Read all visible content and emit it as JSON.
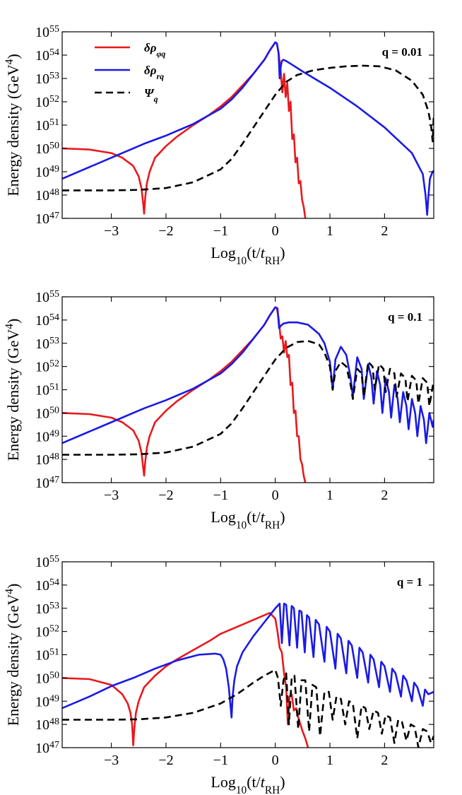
{
  "chart_data": [
    {
      "type": "line",
      "annotation": "q = 0.01",
      "xlabel": "Log10(t/tRH)",
      "ylabel": "Energy density (GeV4)",
      "xlim": [
        -3.9,
        2.9
      ],
      "ylim": [
        47,
        55
      ],
      "y_scale": "log",
      "x_ticks": [
        -3,
        -2,
        -1,
        0,
        1,
        2
      ],
      "y_ticks": [
        47,
        48,
        49,
        50,
        51,
        52,
        53,
        54,
        55
      ],
      "legend": {
        "placement": "top-left"
      },
      "series": [
        {
          "name": "δρφq",
          "color": "#e8191c",
          "style": "solid",
          "x": [
            -3.9,
            -3.4,
            -3.0,
            -2.8,
            -2.6,
            -2.5,
            -2.45,
            -2.42,
            -2.4,
            -2.38,
            -2.35,
            -2.3,
            -2.2,
            -2.0,
            -1.8,
            -1.5,
            -1.2,
            -1.0,
            -0.8,
            -0.6,
            -0.4,
            -0.2,
            -0.1,
            0.0,
            0.03,
            0.06,
            0.1,
            0.13,
            0.16,
            0.19,
            0.22,
            0.25,
            0.28,
            0.31,
            0.34,
            0.37,
            0.4,
            0.43,
            0.46,
            0.49,
            0.52,
            0.55
          ],
          "y": [
            50.0,
            49.95,
            49.8,
            49.6,
            49.25,
            48.8,
            48.3,
            47.7,
            47.2,
            47.9,
            48.5,
            49.0,
            49.6,
            50.1,
            50.5,
            51.0,
            51.45,
            51.8,
            52.2,
            52.7,
            53.2,
            53.8,
            54.2,
            54.55,
            54.5,
            54.1,
            53.3,
            52.4,
            53.2,
            52.2,
            52.8,
            51.6,
            52.0,
            50.4,
            50.6,
            49.4,
            49.6,
            48.5,
            48.6,
            47.8,
            47.5,
            47.0
          ]
        },
        {
          "name": "δρrq",
          "color": "#1a1ae6",
          "style": "solid",
          "x": [
            -3.9,
            -3.0,
            -2.4,
            -2.0,
            -1.5,
            -1.0,
            -0.8,
            -0.6,
            -0.4,
            -0.2,
            -0.1,
            0.0,
            0.03,
            0.06,
            0.08,
            0.1,
            0.12,
            0.15,
            0.2,
            0.3,
            0.5,
            1.0,
            1.5,
            2.0,
            2.5,
            2.7,
            2.75,
            2.78,
            2.8,
            2.83,
            2.87,
            2.9
          ],
          "y": [
            48.7,
            49.6,
            50.2,
            50.55,
            51.05,
            51.7,
            52.1,
            52.6,
            53.2,
            53.8,
            54.2,
            54.55,
            54.5,
            54.1,
            53.0,
            53.5,
            53.75,
            53.8,
            53.75,
            53.6,
            53.3,
            52.6,
            51.8,
            50.9,
            49.8,
            48.9,
            48.0,
            47.15,
            47.9,
            48.7,
            48.95,
            49.05
          ]
        },
        {
          "name": "Ψq",
          "color": "#000000",
          "style": "dashed",
          "x": [
            -3.9,
            -3.0,
            -2.5,
            -2.0,
            -1.5,
            -1.0,
            -0.8,
            -0.6,
            -0.4,
            -0.2,
            0.0,
            0.2,
            0.4,
            0.7,
            1.0,
            1.3,
            1.6,
            1.9,
            2.2,
            2.5,
            2.7,
            2.8,
            2.85,
            2.88,
            2.9
          ],
          "y": [
            48.2,
            48.2,
            48.22,
            48.3,
            48.55,
            49.1,
            49.55,
            50.2,
            50.9,
            51.6,
            52.3,
            52.85,
            53.15,
            53.35,
            53.45,
            53.52,
            53.55,
            53.52,
            53.35,
            52.9,
            52.3,
            51.6,
            51.0,
            50.3,
            51.4
          ]
        }
      ]
    },
    {
      "type": "line",
      "annotation": "q = 0.1",
      "xlabel": "Log10(t/tRH)",
      "ylabel": "Energy density (GeV4)",
      "xlim": [
        -3.9,
        2.9
      ],
      "ylim": [
        47,
        55
      ],
      "y_scale": "log",
      "x_ticks": [
        -3,
        -2,
        -1,
        0,
        1,
        2
      ],
      "y_ticks": [
        47,
        48,
        49,
        50,
        51,
        52,
        53,
        54,
        55
      ],
      "series": [
        {
          "name": "δρφq",
          "color": "#e8191c",
          "style": "solid",
          "x": [
            -3.9,
            -3.4,
            -3.0,
            -2.8,
            -2.6,
            -2.5,
            -2.45,
            -2.42,
            -2.4,
            -2.38,
            -2.35,
            -2.3,
            -2.2,
            -2.0,
            -1.8,
            -1.5,
            -1.2,
            -1.0,
            -0.8,
            -0.6,
            -0.4,
            -0.2,
            -0.1,
            0.0,
            0.03,
            0.06,
            0.1,
            0.13,
            0.16,
            0.19,
            0.22,
            0.25,
            0.28,
            0.31,
            0.34,
            0.37,
            0.4,
            0.43,
            0.46,
            0.49,
            0.52,
            0.55
          ],
          "y": [
            50.0,
            49.95,
            49.8,
            49.6,
            49.25,
            48.8,
            48.3,
            47.7,
            47.3,
            47.9,
            48.5,
            49.0,
            49.6,
            50.1,
            50.5,
            51.0,
            51.45,
            51.8,
            52.2,
            52.7,
            53.2,
            53.8,
            54.2,
            54.55,
            54.5,
            54.1,
            53.2,
            53.3,
            52.6,
            53.1,
            52.4,
            52.5,
            51.2,
            51.3,
            50.0,
            50.1,
            49.0,
            49.0,
            48.0,
            47.8,
            47.3,
            47.0
          ]
        },
        {
          "name": "δρrq",
          "color": "#1a1ae6",
          "style": "solid",
          "x": [
            -3.9,
            -3.0,
            -2.4,
            -2.0,
            -1.5,
            -1.0,
            -0.8,
            -0.6,
            -0.4,
            -0.2,
            -0.1,
            0.0,
            0.04,
            0.07,
            0.1,
            0.15,
            0.25,
            0.4,
            0.6,
            0.8,
            0.9,
            1.0,
            1.05,
            1.1,
            1.2,
            1.3,
            1.38,
            1.42,
            1.5,
            1.58,
            1.62,
            1.7,
            1.76,
            1.8,
            1.86,
            1.92,
            1.96,
            2.02,
            2.08,
            2.12,
            2.18,
            2.24,
            2.28,
            2.34,
            2.4,
            2.44,
            2.5,
            2.56,
            2.6,
            2.66,
            2.72,
            2.76,
            2.82,
            2.88,
            2.9
          ],
          "y": [
            48.7,
            49.6,
            50.2,
            50.55,
            51.05,
            51.7,
            52.1,
            52.6,
            53.2,
            53.8,
            54.2,
            54.55,
            54.5,
            53.65,
            53.75,
            53.85,
            53.9,
            53.9,
            53.8,
            53.4,
            53.0,
            52.2,
            51.0,
            52.3,
            52.85,
            52.5,
            51.5,
            50.7,
            52.4,
            51.9,
            50.6,
            52.1,
            51.5,
            50.4,
            51.8,
            51.2,
            50.0,
            51.5,
            50.9,
            49.8,
            51.2,
            50.6,
            49.6,
            50.9,
            50.3,
            49.3,
            50.6,
            50.0,
            49.0,
            50.3,
            49.7,
            48.7,
            50.0,
            49.4,
            49.7
          ]
        },
        {
          "name": "Ψq",
          "color": "#000000",
          "style": "dashed",
          "x": [
            -3.9,
            -3.0,
            -2.5,
            -2.0,
            -1.5,
            -1.0,
            -0.8,
            -0.6,
            -0.4,
            -0.2,
            0.0,
            0.2,
            0.4,
            0.6,
            0.8,
            0.9,
            1.0,
            1.05,
            1.1,
            1.2,
            1.3,
            1.38,
            1.42,
            1.5,
            1.58,
            1.62,
            1.7,
            1.78,
            1.82,
            1.9,
            1.98,
            2.02,
            2.1,
            2.18,
            2.22,
            2.3,
            2.38,
            2.42,
            2.5,
            2.58,
            2.62,
            2.7,
            2.78,
            2.82,
            2.9
          ],
          "y": [
            48.2,
            48.2,
            48.22,
            48.3,
            48.55,
            49.1,
            49.55,
            50.2,
            50.9,
            51.6,
            52.3,
            52.8,
            53.05,
            53.1,
            52.95,
            52.6,
            52.0,
            51.0,
            51.8,
            52.2,
            52.0,
            51.2,
            50.6,
            51.9,
            51.7,
            50.7,
            52.2,
            52.0,
            51.0,
            52.1,
            51.9,
            50.9,
            51.9,
            51.7,
            50.7,
            51.7,
            51.5,
            50.5,
            51.6,
            51.4,
            50.4,
            51.5,
            51.3,
            50.3,
            51.4
          ]
        }
      ]
    },
    {
      "type": "line",
      "annotation": "q = 1",
      "xlabel": "Log10(t/tRH)",
      "ylabel": "Energy density (GeV4)",
      "xlim": [
        -3.9,
        2.9
      ],
      "ylim": [
        47,
        55
      ],
      "y_scale": "log",
      "x_ticks": [
        -3,
        -2,
        -1,
        0,
        1,
        2
      ],
      "y_ticks": [
        47,
        48,
        49,
        50,
        51,
        52,
        53,
        54,
        55
      ],
      "series": [
        {
          "name": "δρφq",
          "color": "#e8191c",
          "style": "solid",
          "x": [
            -3.9,
            -3.4,
            -3.0,
            -2.9,
            -2.8,
            -2.7,
            -2.65,
            -2.62,
            -2.6,
            -2.58,
            -2.55,
            -2.5,
            -2.4,
            -2.2,
            -2.0,
            -1.8,
            -1.5,
            -1.2,
            -1.0,
            -0.8,
            -0.6,
            -0.4,
            -0.2,
            -0.1,
            0.0,
            0.04,
            0.08,
            0.12,
            0.16,
            0.2,
            0.23,
            0.26,
            0.3,
            0.34,
            0.38,
            0.42,
            0.46,
            0.5,
            0.55,
            0.6
          ],
          "y": [
            50.0,
            49.95,
            49.7,
            49.5,
            49.3,
            48.9,
            48.5,
            48.0,
            47.1,
            47.8,
            48.5,
            49.0,
            49.6,
            50.1,
            50.5,
            50.8,
            51.2,
            51.6,
            51.9,
            52.1,
            52.3,
            52.5,
            52.7,
            52.8,
            52.55,
            52.0,
            51.3,
            51.1,
            50.2,
            49.6,
            48.0,
            49.2,
            49.3,
            48.6,
            48.7,
            48.3,
            48.0,
            47.7,
            47.4,
            47.0
          ]
        },
        {
          "name": "δρrq",
          "color": "#1a1ae6",
          "style": "solid",
          "x": [
            -3.9,
            -3.4,
            -3.0,
            -2.6,
            -2.2,
            -1.8,
            -1.4,
            -1.1,
            -1.0,
            -0.95,
            -0.9,
            -0.85,
            -0.8,
            -0.78,
            -0.75,
            -0.7,
            -0.6,
            -0.4,
            -0.2,
            0.0,
            0.08,
            0.12,
            0.16,
            0.2,
            0.26,
            0.3,
            0.34,
            0.4,
            0.44,
            0.48,
            0.54,
            0.58,
            0.62,
            0.7,
            0.74,
            0.8,
            0.9,
            0.94,
            1.0,
            1.1,
            1.14,
            1.2,
            1.3,
            1.34,
            1.4,
            1.5,
            1.54,
            1.6,
            1.7,
            1.74,
            1.8,
            1.9,
            1.94,
            2.0,
            2.1,
            2.14,
            2.2,
            2.3,
            2.34,
            2.4,
            2.5,
            2.54,
            2.6,
            2.7,
            2.74,
            2.8,
            2.9
          ],
          "y": [
            48.7,
            49.2,
            49.65,
            50.0,
            50.4,
            50.75,
            51.0,
            51.05,
            51.0,
            50.8,
            50.4,
            49.6,
            48.3,
            49.2,
            49.9,
            50.5,
            51.1,
            51.8,
            52.4,
            53.0,
            53.2,
            51.5,
            53.2,
            53.15,
            51.4,
            53.1,
            53.0,
            51.3,
            52.9,
            52.85,
            51.1,
            52.7,
            52.6,
            50.9,
            52.5,
            52.3,
            50.7,
            52.2,
            52.0,
            50.4,
            51.9,
            51.7,
            50.2,
            51.6,
            51.4,
            50.0,
            51.3,
            51.1,
            49.8,
            51.0,
            50.8,
            49.6,
            50.7,
            50.5,
            49.4,
            50.4,
            50.2,
            49.2,
            50.1,
            49.9,
            49.0,
            49.8,
            49.6,
            48.8,
            49.5,
            49.3,
            49.4
          ]
        },
        {
          "name": "Ψq",
          "color": "#000000",
          "style": "dashed",
          "x": [
            -3.9,
            -3.0,
            -2.5,
            -2.0,
            -1.5,
            -1.0,
            -0.7,
            -0.4,
            -0.2,
            0.0,
            0.05,
            0.1,
            0.15,
            0.2,
            0.25,
            0.3,
            0.35,
            0.42,
            0.48,
            0.55,
            0.62,
            0.68,
            0.75,
            0.82,
            0.9,
            0.98,
            1.05,
            1.12,
            1.2,
            1.28,
            1.35,
            1.42,
            1.5,
            1.58,
            1.65,
            1.72,
            1.8,
            1.88,
            1.95,
            2.02,
            2.1,
            2.18,
            2.25,
            2.32,
            2.4,
            2.48,
            2.55,
            2.62,
            2.7,
            2.78,
            2.85,
            2.9
          ],
          "y": [
            48.2,
            48.2,
            48.22,
            48.3,
            48.5,
            48.9,
            49.3,
            49.8,
            50.1,
            50.35,
            50.0,
            48.8,
            49.9,
            50.2,
            48.0,
            50.0,
            50.1,
            47.8,
            49.9,
            49.9,
            47.7,
            49.7,
            49.6,
            47.5,
            49.4,
            49.4,
            48.2,
            49.2,
            49.1,
            48.0,
            49.0,
            48.9,
            47.4,
            48.8,
            48.7,
            47.8,
            48.6,
            48.5,
            47.6,
            48.4,
            48.3,
            47.2,
            48.2,
            48.1,
            47.3,
            48.0,
            47.9,
            47.0,
            47.8,
            47.7,
            47.2,
            47.5
          ]
        }
      ]
    }
  ]
}
